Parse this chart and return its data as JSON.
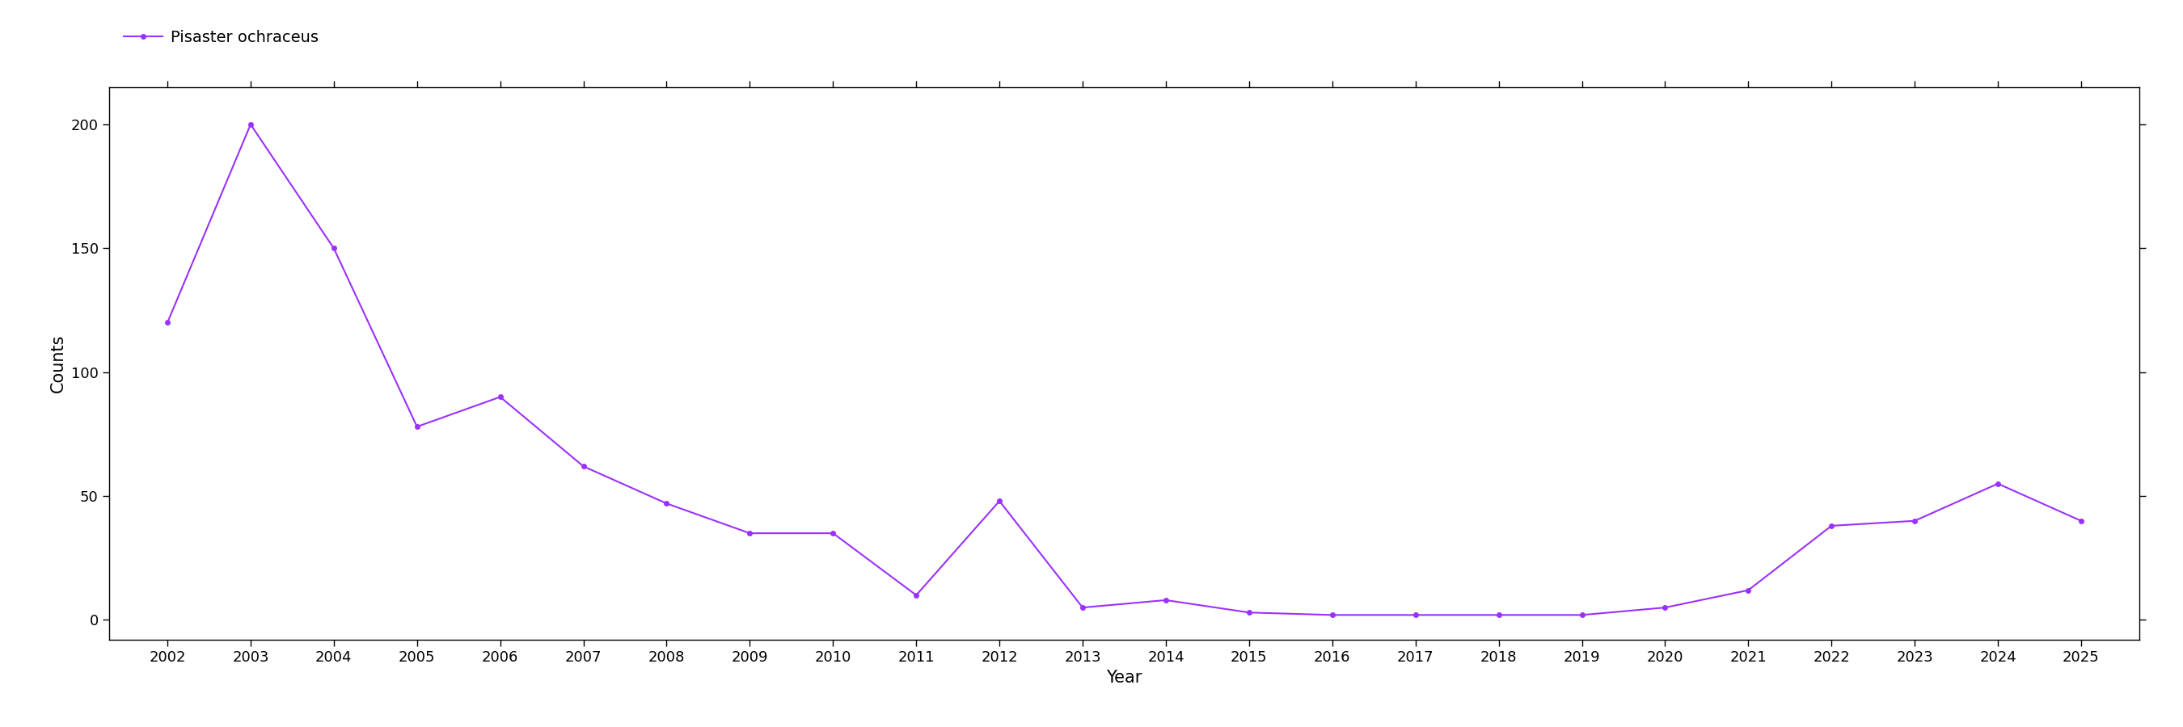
{
  "actual_years": [
    2002,
    2003,
    2004,
    2005,
    2006,
    2007,
    2008,
    2009,
    2010,
    2011,
    2012,
    2013,
    2014,
    2015,
    2016,
    2017,
    2018,
    2019,
    2020,
    2021,
    2022,
    2023,
    2024,
    2025
  ],
  "actual_counts": [
    120,
    200,
    150,
    78,
    90,
    62,
    47,
    35,
    35,
    10,
    48,
    5,
    8,
    3,
    2,
    2,
    2,
    2,
    5,
    12,
    38,
    40,
    55,
    40
  ],
  "line_color": "#9B30FF",
  "marker": "o",
  "marker_size": 4,
  "legend_label": "Pisaster ochraceus",
  "xlabel": "Year",
  "ylabel": "Counts",
  "ylim": [
    -8,
    215
  ],
  "yticks": [
    0,
    50,
    100,
    150,
    200
  ],
  "background_color": "#ffffff",
  "legend_fontsize": 14,
  "axis_label_fontsize": 15,
  "tick_fontsize": 13
}
